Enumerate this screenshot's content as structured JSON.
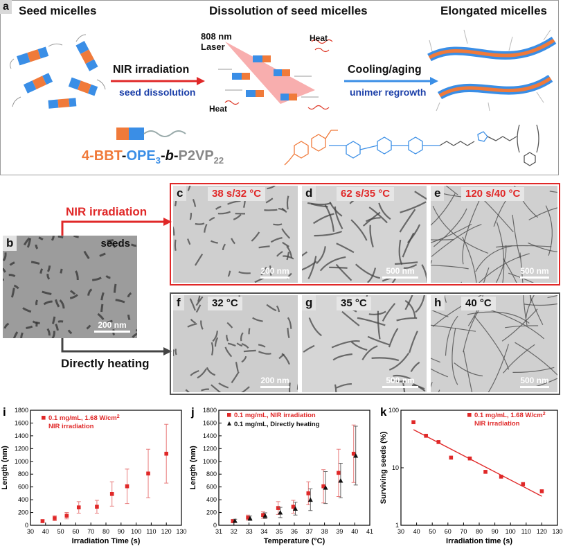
{
  "panel_a": {
    "label": "a",
    "titles": {
      "seed": "Seed micelles",
      "dissolution": "Dissolution of seed micelles",
      "elongated": "Elongated micelles"
    },
    "step1": {
      "main": "NIR irradiation",
      "sub": "seed dissolution"
    },
    "step2": {
      "main": "Cooling/aging",
      "sub": "unimer regrowth"
    },
    "laser": {
      "line1": "808 nm",
      "line2": "Laser"
    },
    "heat_top": "Heat",
    "heat_bottom": "Heat",
    "polymer": {
      "p1": "4-BBT",
      "d1": "-",
      "p2": "OPE",
      "p2sub": "3",
      "d2": "-",
      "b": "b",
      "d3": "-",
      "p3": "P2VP",
      "p3sub": "22"
    }
  },
  "tem": {
    "b": {
      "label": "b",
      "cond": "seeds",
      "scale": "200 nm"
    },
    "c": {
      "label": "c",
      "cond": "38 s/32 °C",
      "scale": "200 nm"
    },
    "d": {
      "label": "d",
      "cond": "62 s/35 °C",
      "scale": "500 nm"
    },
    "e": {
      "label": "e",
      "cond": "120 s/40 °C",
      "scale": "500 nm"
    },
    "f": {
      "label": "f",
      "cond": "32 °C",
      "scale": "200 nm"
    },
    "g": {
      "label": "g",
      "cond": "35 °C",
      "scale": "500 nm"
    },
    "h": {
      "label": "h",
      "cond": "40 °C",
      "scale": "500 nm"
    }
  },
  "routes": {
    "nir": "NIR irradiation",
    "heat": "Directly heating"
  },
  "colors": {
    "red": "#e02828",
    "blue": "#1a3ea8",
    "orange": "#f07a3a",
    "lightblue": "#3a8ee6",
    "grey": "#555555"
  },
  "chart_data": [
    {
      "panel": "i",
      "type": "scatter",
      "xlabel": "Irradiation Time (s)",
      "ylabel": "Length (nm)",
      "xlim": [
        30,
        130
      ],
      "ylim": [
        0,
        1800
      ],
      "xticks": [
        30,
        40,
        50,
        60,
        70,
        80,
        90,
        100,
        110,
        120,
        130
      ],
      "yticks": [
        0,
        200,
        400,
        600,
        800,
        1000,
        1200,
        1400,
        1600,
        1800
      ],
      "legend": [
        "0.1 mg/mL, 1.68 W/cm",
        "NIR irradiation"
      ],
      "legend_sup": "2",
      "series": [
        {
          "name": "0.1 mg/mL, 1.68 W/cm2 NIR irradiation",
          "x": [
            38,
            46,
            54,
            62,
            74,
            84,
            94,
            108,
            120
          ],
          "y": [
            65,
            110,
            150,
            280,
            290,
            490,
            610,
            810,
            1120
          ],
          "err": [
            20,
            40,
            50,
            90,
            100,
            190,
            270,
            380,
            460
          ]
        }
      ]
    },
    {
      "panel": "j",
      "type": "scatter",
      "xlabel": "Temperature (°C)",
      "ylabel": "Length (nm)",
      "xlim": [
        31,
        41
      ],
      "ylim": [
        0,
        1800
      ],
      "xticks": [
        31,
        32,
        33,
        34,
        35,
        36,
        37,
        38,
        39,
        40,
        41
      ],
      "yticks": [
        0,
        200,
        400,
        600,
        800,
        1000,
        1200,
        1400,
        1600,
        1800
      ],
      "legend": [
        "0.1 mg/mL, NIR irradiation",
        "0.1 mg/mL, Directly heating"
      ],
      "series": [
        {
          "name": "0.1 mg/mL, NIR irradiation",
          "marker": "square",
          "x": [
            32,
            33,
            34,
            35,
            36,
            37,
            38,
            39,
            40
          ],
          "y": [
            65,
            120,
            160,
            270,
            290,
            500,
            610,
            820,
            1120
          ],
          "err": [
            25,
            40,
            50,
            100,
            100,
            180,
            260,
            370,
            450
          ]
        },
        {
          "name": "0.1 mg/mL, Directly heating",
          "marker": "triangle",
          "x": [
            32,
            33,
            34,
            35,
            36,
            37,
            38,
            39,
            40
          ],
          "y": [
            70,
            110,
            150,
            200,
            260,
            400,
            590,
            700,
            1090
          ],
          "err": [
            25,
            35,
            45,
            80,
            100,
            170,
            250,
            270,
            460
          ]
        }
      ]
    },
    {
      "panel": "k",
      "type": "scatter",
      "xlabel": "Irradiation time (s)",
      "ylabel": "Surviving seeds (%)",
      "xlim": [
        30,
        130
      ],
      "ylim": [
        1,
        100
      ],
      "yscale": "log",
      "xticks": [
        30,
        40,
        50,
        60,
        70,
        80,
        90,
        100,
        110,
        120,
        130
      ],
      "yticks": [
        1,
        10,
        100
      ],
      "legend": [
        "0.1 mg/mL, 1.68 W/cm",
        "NIR irradiation"
      ],
      "legend_sup": "2",
      "series": [
        {
          "name": "0.1 mg/mL, 1.68 W/cm2 NIR irradiation",
          "x": [
            38,
            46,
            54,
            62,
            74,
            84,
            94,
            108,
            120
          ],
          "y": [
            62,
            36,
            28,
            15,
            14.5,
            8.5,
            7,
            5.2,
            3.9
          ]
        }
      ],
      "fit": {
        "x": [
          38,
          120
        ],
        "y": [
          46,
          3.2
        ]
      }
    }
  ]
}
